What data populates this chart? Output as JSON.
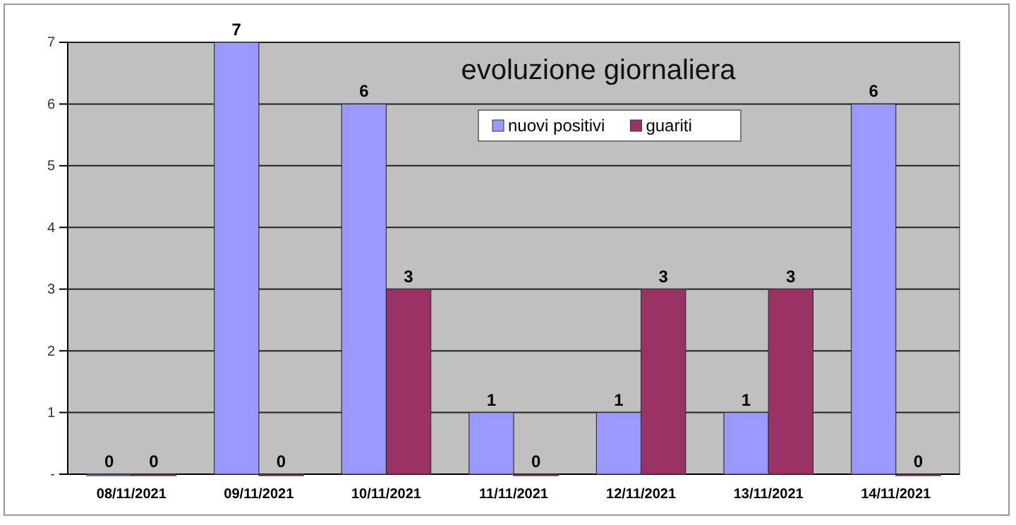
{
  "chart_data": {
    "type": "bar",
    "title": "evoluzione giornaliera",
    "categories": [
      "08/11/2021",
      "09/11/2021",
      "10/11/2021",
      "11/11/2021",
      "12/11/2021",
      "13/11/2021",
      "14/11/2021"
    ],
    "series": [
      {
        "name": "nuovi positivi",
        "color": "#9999ff",
        "values": [
          0,
          7,
          6,
          1,
          1,
          1,
          6
        ]
      },
      {
        "name": "guariti",
        "color": "#993366",
        "values": [
          0,
          0,
          3,
          0,
          3,
          3,
          0
        ]
      }
    ],
    "ylim": [
      0,
      7
    ],
    "yticks": [
      {
        "value": 0,
        "label": "-"
      },
      1,
      2,
      3,
      4,
      5,
      6,
      7
    ],
    "grid": "y",
    "legend": "top",
    "data_labels": true
  }
}
